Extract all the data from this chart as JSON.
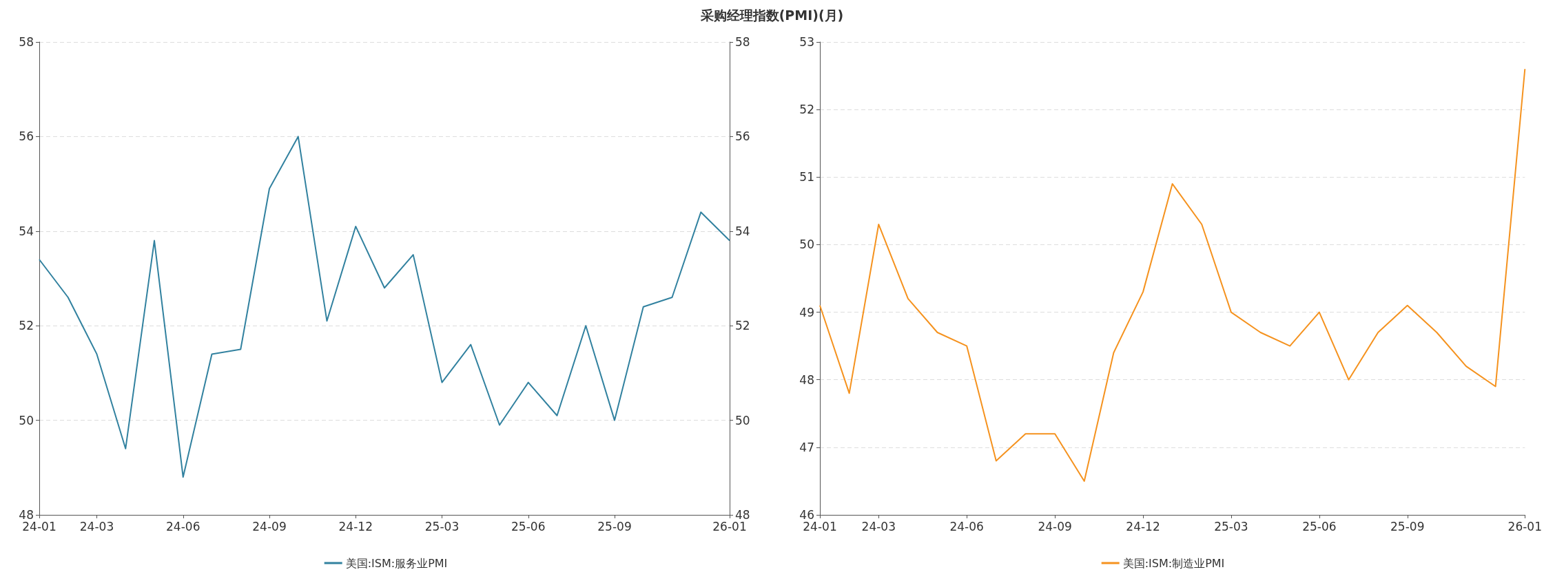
{
  "chart_data": [
    {
      "type": "line",
      "title": "采购经理指数(PMI)(月)",
      "categories": [
        "24-01",
        null,
        "24-03",
        null,
        null,
        "24-06",
        null,
        null,
        "24-09",
        null,
        null,
        "24-12",
        null,
        null,
        "25-03",
        null,
        null,
        "25-06",
        null,
        null,
        "25-09",
        null,
        null,
        null,
        "26-01"
      ],
      "series": [
        {
          "name": "美国:ISM:服务业PMI",
          "color": "#31819f",
          "values": [
            53.4,
            52.6,
            51.4,
            49.4,
            53.8,
            48.8,
            51.4,
            51.5,
            54.9,
            56.0,
            52.1,
            54.1,
            52.8,
            53.5,
            50.8,
            51.6,
            49.9,
            50.8,
            50.1,
            52.0,
            50.0,
            52.4,
            52.6,
            54.4,
            53.8
          ]
        }
      ],
      "ylim": [
        48,
        58
      ],
      "yticks": [
        48,
        50,
        52,
        54,
        56,
        58
      ],
      "y2lim": [
        48,
        58
      ],
      "y2ticks": [
        48,
        50,
        52,
        54,
        56,
        58
      ],
      "grid": "y",
      "legend": "bottom",
      "marker": "none"
    },
    {
      "type": "line",
      "categories": [
        "24-01",
        null,
        "24-03",
        null,
        null,
        "24-06",
        null,
        null,
        "24-09",
        null,
        null,
        "24-12",
        null,
        null,
        "25-03",
        null,
        null,
        "25-06",
        null,
        null,
        "25-09",
        null,
        null,
        null,
        "26-01"
      ],
      "series": [
        {
          "name": "美国:ISM:制造业PMI",
          "color": "#f5921e",
          "values": [
            49.1,
            47.8,
            50.3,
            49.2,
            48.7,
            48.5,
            46.8,
            47.2,
            47.2,
            46.5,
            48.4,
            49.3,
            50.9,
            50.3,
            49.0,
            48.7,
            48.5,
            49.0,
            48.0,
            48.7,
            49.1,
            48.7,
            48.2,
            47.9,
            52.6
          ]
        }
      ],
      "ylim": [
        46,
        53
      ],
      "yticks": [
        46,
        47,
        48,
        49,
        50,
        51,
        52,
        53
      ],
      "grid": "y",
      "legend": "bottom",
      "marker": "none"
    }
  ]
}
